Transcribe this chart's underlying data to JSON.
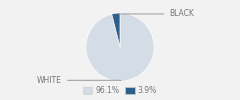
{
  "slices": [
    96.1,
    3.9
  ],
  "labels": [
    "WHITE",
    "BLACK"
  ],
  "colors": [
    "#d4dce6",
    "#2e5f8a"
  ],
  "legend_labels": [
    "96.1%",
    "3.9%"
  ],
  "startangle": 90,
  "bg_color": "#f2f2f2"
}
